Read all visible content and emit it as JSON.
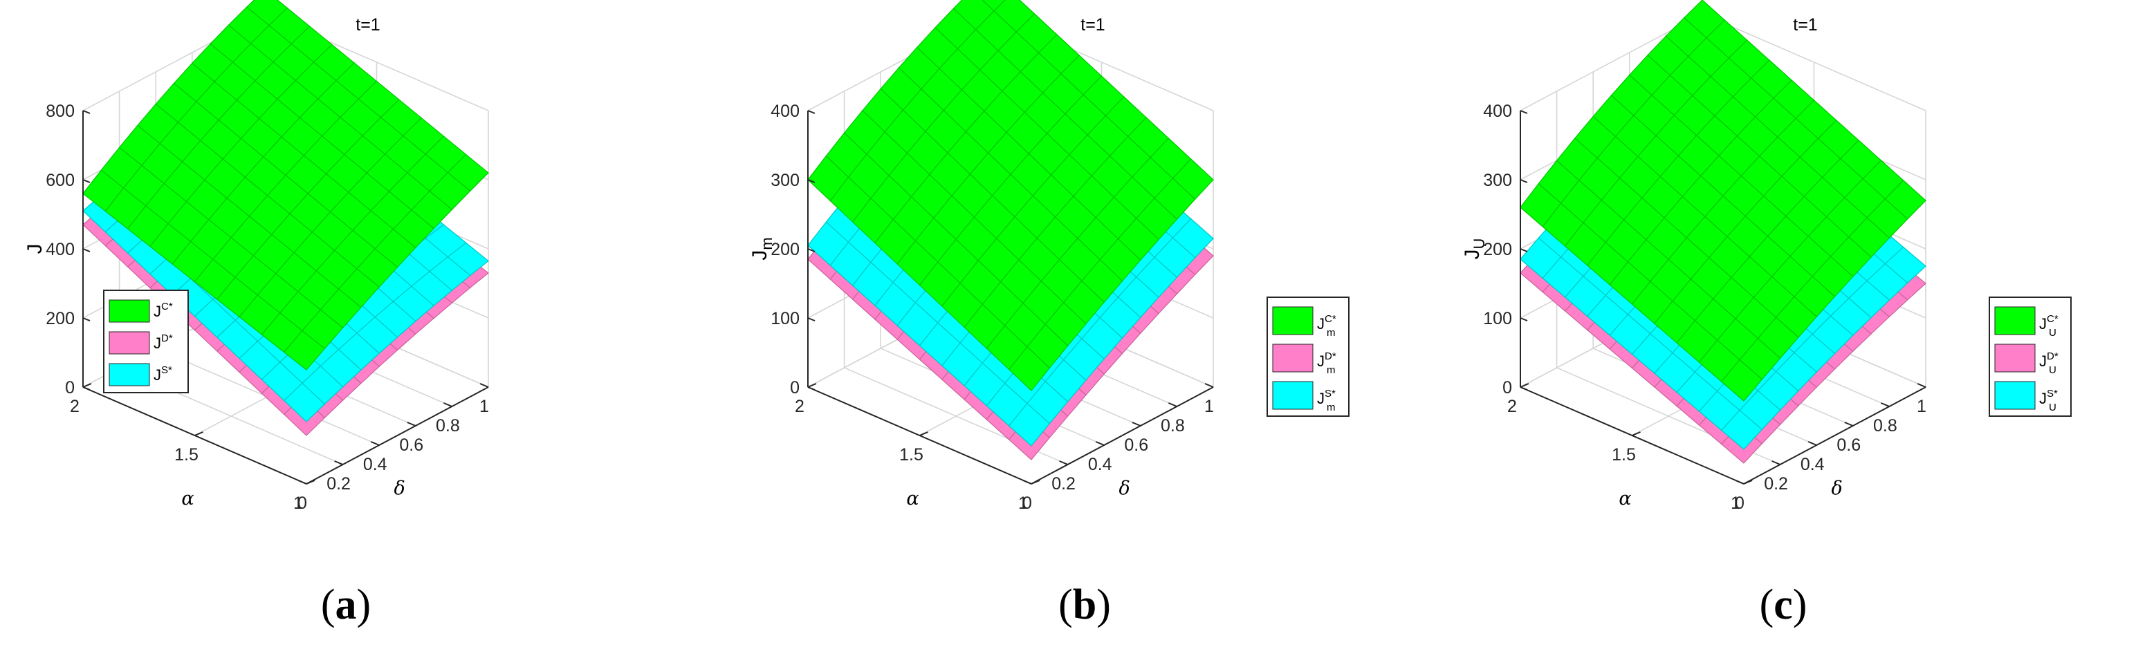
{
  "chart_data": [
    {
      "type": "surface3d",
      "title": "t=1",
      "caption": "a",
      "xlabel": "δ",
      "ylabel": "α",
      "zlabel": "J",
      "zlabel_sub": "",
      "x_ticks": [
        "0",
        "0.2",
        "0.4",
        "0.6",
        "0.8",
        "1"
      ],
      "y_ticks": [
        "1",
        "1.5",
        "2"
      ],
      "z_ticks": [
        "0",
        "200",
        "400",
        "600",
        "800"
      ],
      "xlim": [
        0,
        1
      ],
      "ylim": [
        1,
        2
      ],
      "zlim": [
        0,
        800
      ],
      "legend": [
        {
          "base": "J",
          "sup": "C*",
          "sub": ""
        },
        {
          "base": "J",
          "sup": "D*",
          "sub": ""
        },
        {
          "base": "J",
          "sup": "S*",
          "sub": ""
        }
      ],
      "legend_position": "left-middle",
      "series": [
        {
          "name": "J^C*",
          "color": "#00ff00",
          "corners": {
            "d0_a2": 560,
            "d0_a1": 330,
            "d1_a1": 620,
            "d1_a2": 870
          }
        },
        {
          "name": "J^D*",
          "color": "#ff80c8",
          "corners": {
            "d0_a2": 470,
            "d0_a1": 140,
            "d1_a1": 330,
            "d1_a2": 560
          }
        },
        {
          "name": "J^S*",
          "color": "#00ffff",
          "corners": {
            "d0_a2": 510,
            "d0_a1": 180,
            "d1_a1": 365,
            "d1_a2": 610
          }
        }
      ]
    },
    {
      "type": "surface3d",
      "title": "t=1",
      "caption": "b",
      "xlabel": "δ",
      "ylabel": "α",
      "zlabel": "J",
      "zlabel_sub": "m",
      "x_ticks": [
        "0",
        "0.2",
        "0.4",
        "0.6",
        "0.8",
        "1"
      ],
      "y_ticks": [
        "1",
        "1.5",
        "2"
      ],
      "z_ticks": [
        "0",
        "100",
        "200",
        "300",
        "400"
      ],
      "xlim": [
        0,
        1
      ],
      "ylim": [
        1,
        2
      ],
      "zlim": [
        0,
        400
      ],
      "legend": [
        {
          "base": "J",
          "sup": "C*",
          "sub": "m"
        },
        {
          "base": "J",
          "sup": "D*",
          "sub": "m"
        },
        {
          "base": "J",
          "sup": "S*",
          "sub": "m"
        }
      ],
      "legend_position": "right-middle",
      "series": [
        {
          "name": "J_m^C*",
          "color": "#00ff00",
          "corners": {
            "d0_a2": 300,
            "d0_a1": 135,
            "d1_a1": 300,
            "d1_a2": 460
          }
        },
        {
          "name": "J_m^D*",
          "color": "#ff80c8",
          "corners": {
            "d0_a2": 185,
            "d0_a1": 35,
            "d1_a1": 190,
            "d1_a2": 330
          }
        },
        {
          "name": "J_m^S*",
          "color": "#00ffff",
          "corners": {
            "d0_a2": 205,
            "d0_a1": 55,
            "d1_a1": 215,
            "d1_a2": 360
          }
        }
      ]
    },
    {
      "type": "surface3d",
      "title": "t=1",
      "caption": "c",
      "xlabel": "δ",
      "ylabel": "α",
      "zlabel": "J",
      "zlabel_sub": "U",
      "x_ticks": [
        "0",
        "0.2",
        "0.4",
        "0.6",
        "0.8",
        "1"
      ],
      "y_ticks": [
        "1",
        "1.5",
        "2"
      ],
      "z_ticks": [
        "0",
        "100",
        "200",
        "300",
        "400"
      ],
      "xlim": [
        0,
        1
      ],
      "ylim": [
        1,
        2
      ],
      "zlim": [
        0,
        400
      ],
      "legend": [
        {
          "base": "J",
          "sup": "C*",
          "sub": "U"
        },
        {
          "base": "J",
          "sup": "D*",
          "sub": "U"
        },
        {
          "base": "J",
          "sup": "S*",
          "sub": "U"
        }
      ],
      "legend_position": "right-middle",
      "series": [
        {
          "name": "J_U^C*",
          "color": "#00ff00",
          "corners": {
            "d0_a2": 260,
            "d0_a1": 120,
            "d1_a1": 270,
            "d1_a2": 420
          }
        },
        {
          "name": "J_U^D*",
          "color": "#ff80c8",
          "corners": {
            "d0_a2": 165,
            "d0_a1": 30,
            "d1_a1": 150,
            "d1_a2": 275
          }
        },
        {
          "name": "J_U^S*",
          "color": "#00ffff",
          "corners": {
            "d0_a2": 185,
            "d0_a1": 50,
            "d1_a1": 175,
            "d1_a2": 310
          }
        }
      ]
    }
  ]
}
